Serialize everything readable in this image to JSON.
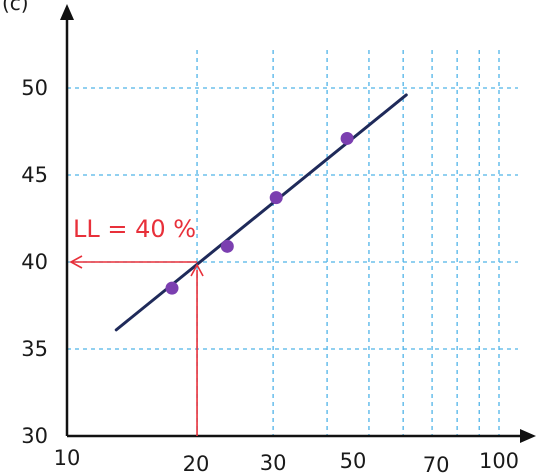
{
  "chart_data": {
    "type": "scatter",
    "x_scale": "log",
    "x_ticks": [
      10,
      20,
      30,
      50,
      70,
      100
    ],
    "y_ticks": [
      30,
      35,
      40,
      45,
      50
    ],
    "xlim": [
      10,
      100
    ],
    "ylim": [
      30,
      50
    ],
    "grid": true,
    "corner_label": "(c)",
    "points": [
      {
        "x": 17.5,
        "y": 38.5
      },
      {
        "x": 23.5,
        "y": 40.9
      },
      {
        "x": 30.5,
        "y": 43.7
      },
      {
        "x": 44.5,
        "y": 47.1
      }
    ],
    "fit_line": {
      "x": [
        13,
        61
      ],
      "y": [
        36.1,
        49.6
      ]
    },
    "annotation": {
      "text": "LL = 40 %",
      "x": 20,
      "y": 40
    },
    "colors": {
      "grid": "#4fb3e8",
      "points": "#7b3fb0",
      "fit_line": "#1f2a5a",
      "annotation": "#e8303a",
      "axes": "#111111"
    }
  }
}
